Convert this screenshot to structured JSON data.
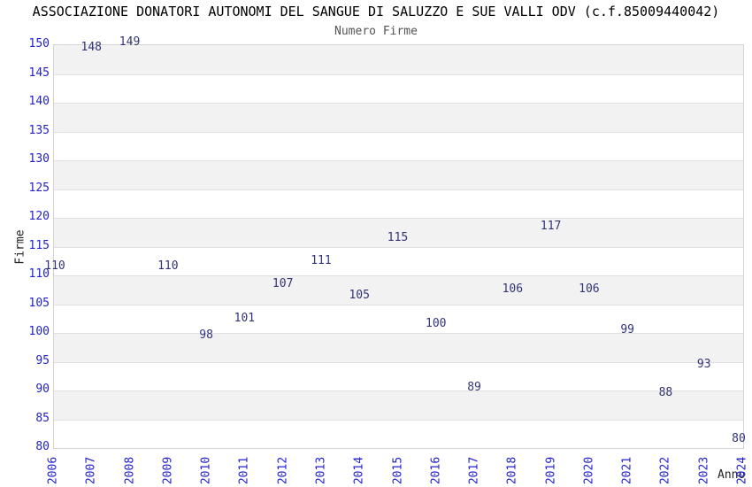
{
  "chart_data": {
    "type": "line",
    "title": "ASSOCIAZIONE DONATORI AUTONOMI DEL SANGUE DI SALUZZO E SUE VALLI ODV (c.f.85009440042)",
    "subtitle": "Numero Firme",
    "xlabel": "Anno",
    "ylabel": "Firme",
    "categories": [
      "2006",
      "2007",
      "2008",
      "2009",
      "2010",
      "2011",
      "2012",
      "2013",
      "2014",
      "2015",
      "2016",
      "2017",
      "2018",
      "2019",
      "2020",
      "2021",
      "2022",
      "2023",
      "2024"
    ],
    "series": [
      {
        "name": "Numero Firme",
        "values": [
          110,
          148,
          149,
          110,
          98,
          101,
          107,
          111,
          105,
          115,
          100,
          89,
          106,
          117,
          106,
          99,
          88,
          93,
          80
        ]
      }
    ],
    "ylim": [
      80,
      150
    ],
    "ytick_step": 5,
    "grid": "horizontal",
    "background_bands": "alternating 5-unit gray/white stripes, gray at top (150-145)",
    "legend": "none",
    "data_labels_shown": true,
    "colors": {
      "line": "#74a9e2",
      "tick_labels": "#2222cc",
      "data_labels": "#333377",
      "band_dark": "#f2f2f2",
      "band_light": "#ffffff",
      "gridline": "#e0e0e0",
      "plot_border": "#d4d4d4",
      "title": "#000000",
      "subtitle": "#555555",
      "axis_titles": "#222222"
    }
  }
}
